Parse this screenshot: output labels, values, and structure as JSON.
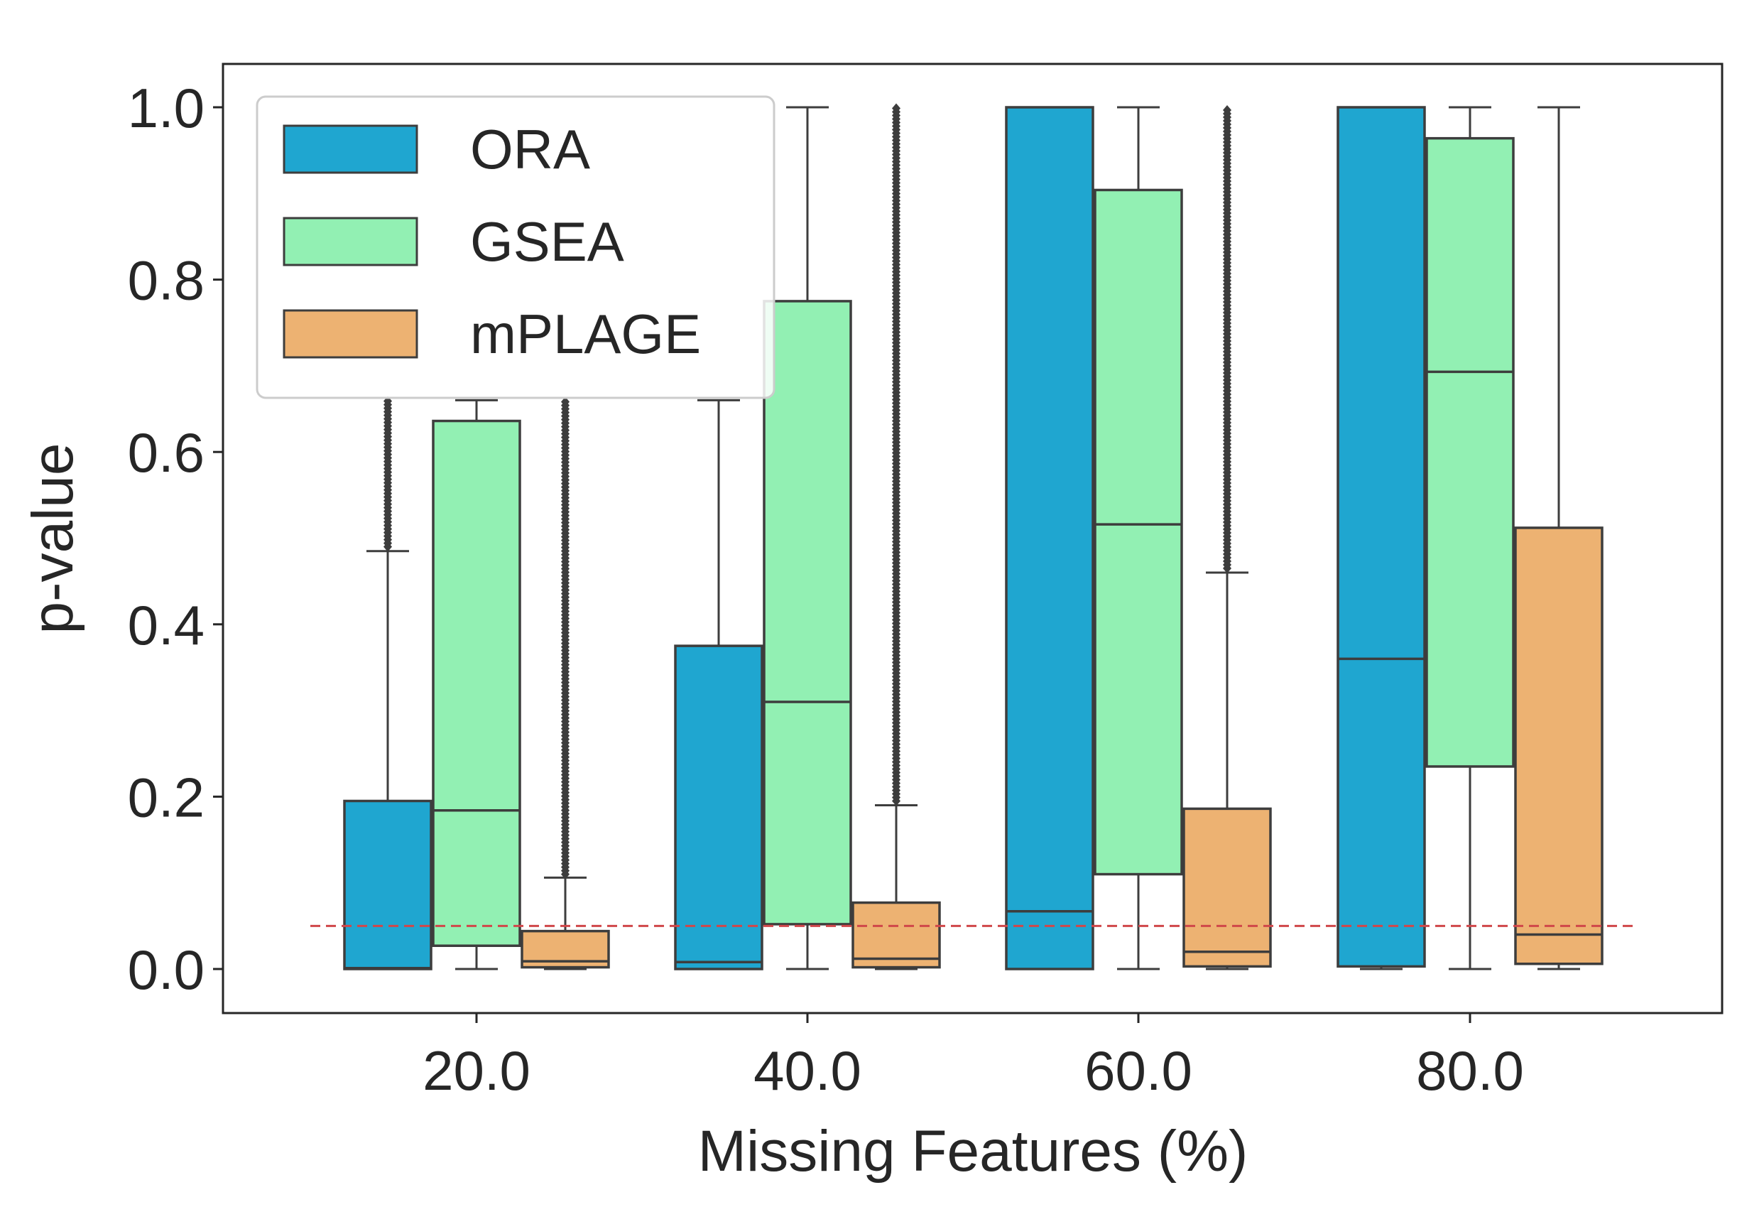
{
  "chart_data": {
    "type": "boxplot",
    "title": "",
    "xlabel": "Missing Features (%)",
    "ylabel": "p-value",
    "ylim": [
      -0.05,
      1.05
    ],
    "yticks": [
      0.0,
      0.2,
      0.4,
      0.6,
      0.8,
      1.0
    ],
    "ytick_labels": [
      "0.0",
      "0.2",
      "0.4",
      "0.6",
      "0.8",
      "1.0"
    ],
    "categories": [
      "20.0",
      "40.0",
      "60.0",
      "80.0"
    ],
    "legend_position": "top-left",
    "threshold": {
      "value": 0.05,
      "color": "#d0474a",
      "style": "dashed"
    },
    "series": [
      {
        "name": "ORA",
        "color": "#1fa6d0",
        "boxes": [
          {
            "whislo": 0.0,
            "q1": 0.0,
            "med": 0.001,
            "q3": 0.195,
            "whishi": 0.485,
            "fliers_range": [
              0.49,
              0.66
            ]
          },
          {
            "whislo": 0.0,
            "q1": 0.0,
            "med": 0.008,
            "q3": 0.375,
            "whishi": 0.66,
            "fliers_range": null
          },
          {
            "whislo": 0.0,
            "q1": 0.0,
            "med": 0.067,
            "q3": 1.0,
            "whishi": 1.0,
            "fliers_range": null
          },
          {
            "whislo": 0.0,
            "q1": 0.003,
            "med": 0.36,
            "q3": 1.0,
            "whishi": 1.0,
            "fliers_range": null
          }
        ]
      },
      {
        "name": "GSEA",
        "color": "#92f0b3",
        "boxes": [
          {
            "whislo": 0.0,
            "q1": 0.027,
            "med": 0.184,
            "q3": 0.636,
            "whishi": 0.66,
            "fliers_range": null
          },
          {
            "whislo": 0.0,
            "q1": 0.052,
            "med": 0.31,
            "q3": 0.775,
            "whishi": 1.0,
            "fliers_range": null
          },
          {
            "whislo": 0.0,
            "q1": 0.11,
            "med": 0.516,
            "q3": 0.904,
            "whishi": 1.0,
            "fliers_range": null
          },
          {
            "whislo": 0.0,
            "q1": 0.235,
            "med": 0.693,
            "q3": 0.964,
            "whishi": 1.0,
            "fliers_range": null
          }
        ]
      },
      {
        "name": "mPLAGE",
        "color": "#edb272",
        "boxes": [
          {
            "whislo": 0.0,
            "q1": 0.002,
            "med": 0.009,
            "q3": 0.044,
            "whishi": 0.106,
            "fliers_range": [
              0.11,
              0.66
            ]
          },
          {
            "whislo": 0.0,
            "q1": 0.002,
            "med": 0.012,
            "q3": 0.077,
            "whishi": 0.19,
            "fliers_range": [
              0.195,
              1.0
            ]
          },
          {
            "whislo": 0.0,
            "q1": 0.003,
            "med": 0.02,
            "q3": 0.186,
            "whishi": 0.46,
            "fliers_range": [
              0.465,
              1.0
            ]
          },
          {
            "whislo": 0.0,
            "q1": 0.006,
            "med": 0.04,
            "q3": 0.512,
            "whishi": 1.0,
            "fliers_range": null
          }
        ]
      }
    ]
  }
}
